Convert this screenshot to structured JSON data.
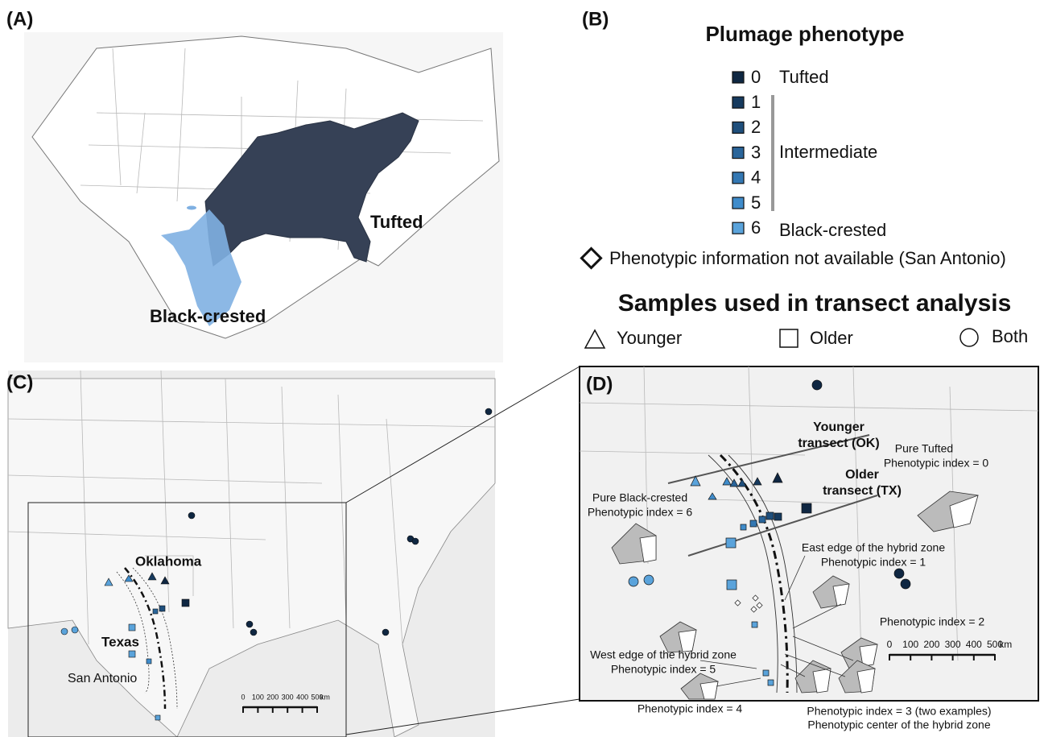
{
  "panel_a": {
    "label": "(A)",
    "tufted": "Tufted",
    "black_crested": "Black-crested"
  },
  "panel_b": {
    "label": "(B)",
    "legend_title": "Plumage phenotype",
    "levels": [
      0,
      1,
      2,
      3,
      4,
      5,
      6
    ],
    "level_colors": [
      "#0f2742",
      "#163a5e",
      "#1f4f7c",
      "#2a659a",
      "#3478b3",
      "#3f8ccb",
      "#5aa3db"
    ],
    "tufted": "Tufted",
    "intermediate": "Intermediate",
    "black_crested": "Black-crested",
    "na_note": "Phenotypic information not available (San Antonio)",
    "samples_title": "Samples used in transect analysis",
    "sample_types": [
      "Younger",
      "Older",
      "Both"
    ]
  },
  "panel_c": {
    "label": "(C)",
    "places": [
      "Oklahoma",
      "Texas",
      "San Antonio"
    ],
    "scale_ticks": [
      0,
      100,
      200,
      300,
      400,
      500
    ],
    "scale_unit": "km"
  },
  "panel_d": {
    "label": "(D)",
    "younger_transect": [
      "Younger",
      "transect (OK)"
    ],
    "older_transect": [
      "Older",
      "transect (TX)"
    ],
    "pure_tufted": [
      "Pure Tufted",
      "Phenotypic index = 0"
    ],
    "pure_black_crested": [
      "Pure Black-crested",
      "Phenotypic index = 6"
    ],
    "east_edge": [
      "East edge of the hybrid zone",
      "Phenotypic index = 1"
    ],
    "index_2": "Phenotypic index = 2",
    "west_edge": [
      "West edge of the hybrid zone",
      "Phenotypic index = 5"
    ],
    "index_4": "Phenotypic index = 4",
    "center": [
      "Phenotypic index = 3 (two examples)",
      "Phenotypic center of the hybrid zone"
    ],
    "scale_ticks": [
      0,
      100,
      200,
      300,
      400,
      500
    ],
    "scale_unit": "km"
  }
}
